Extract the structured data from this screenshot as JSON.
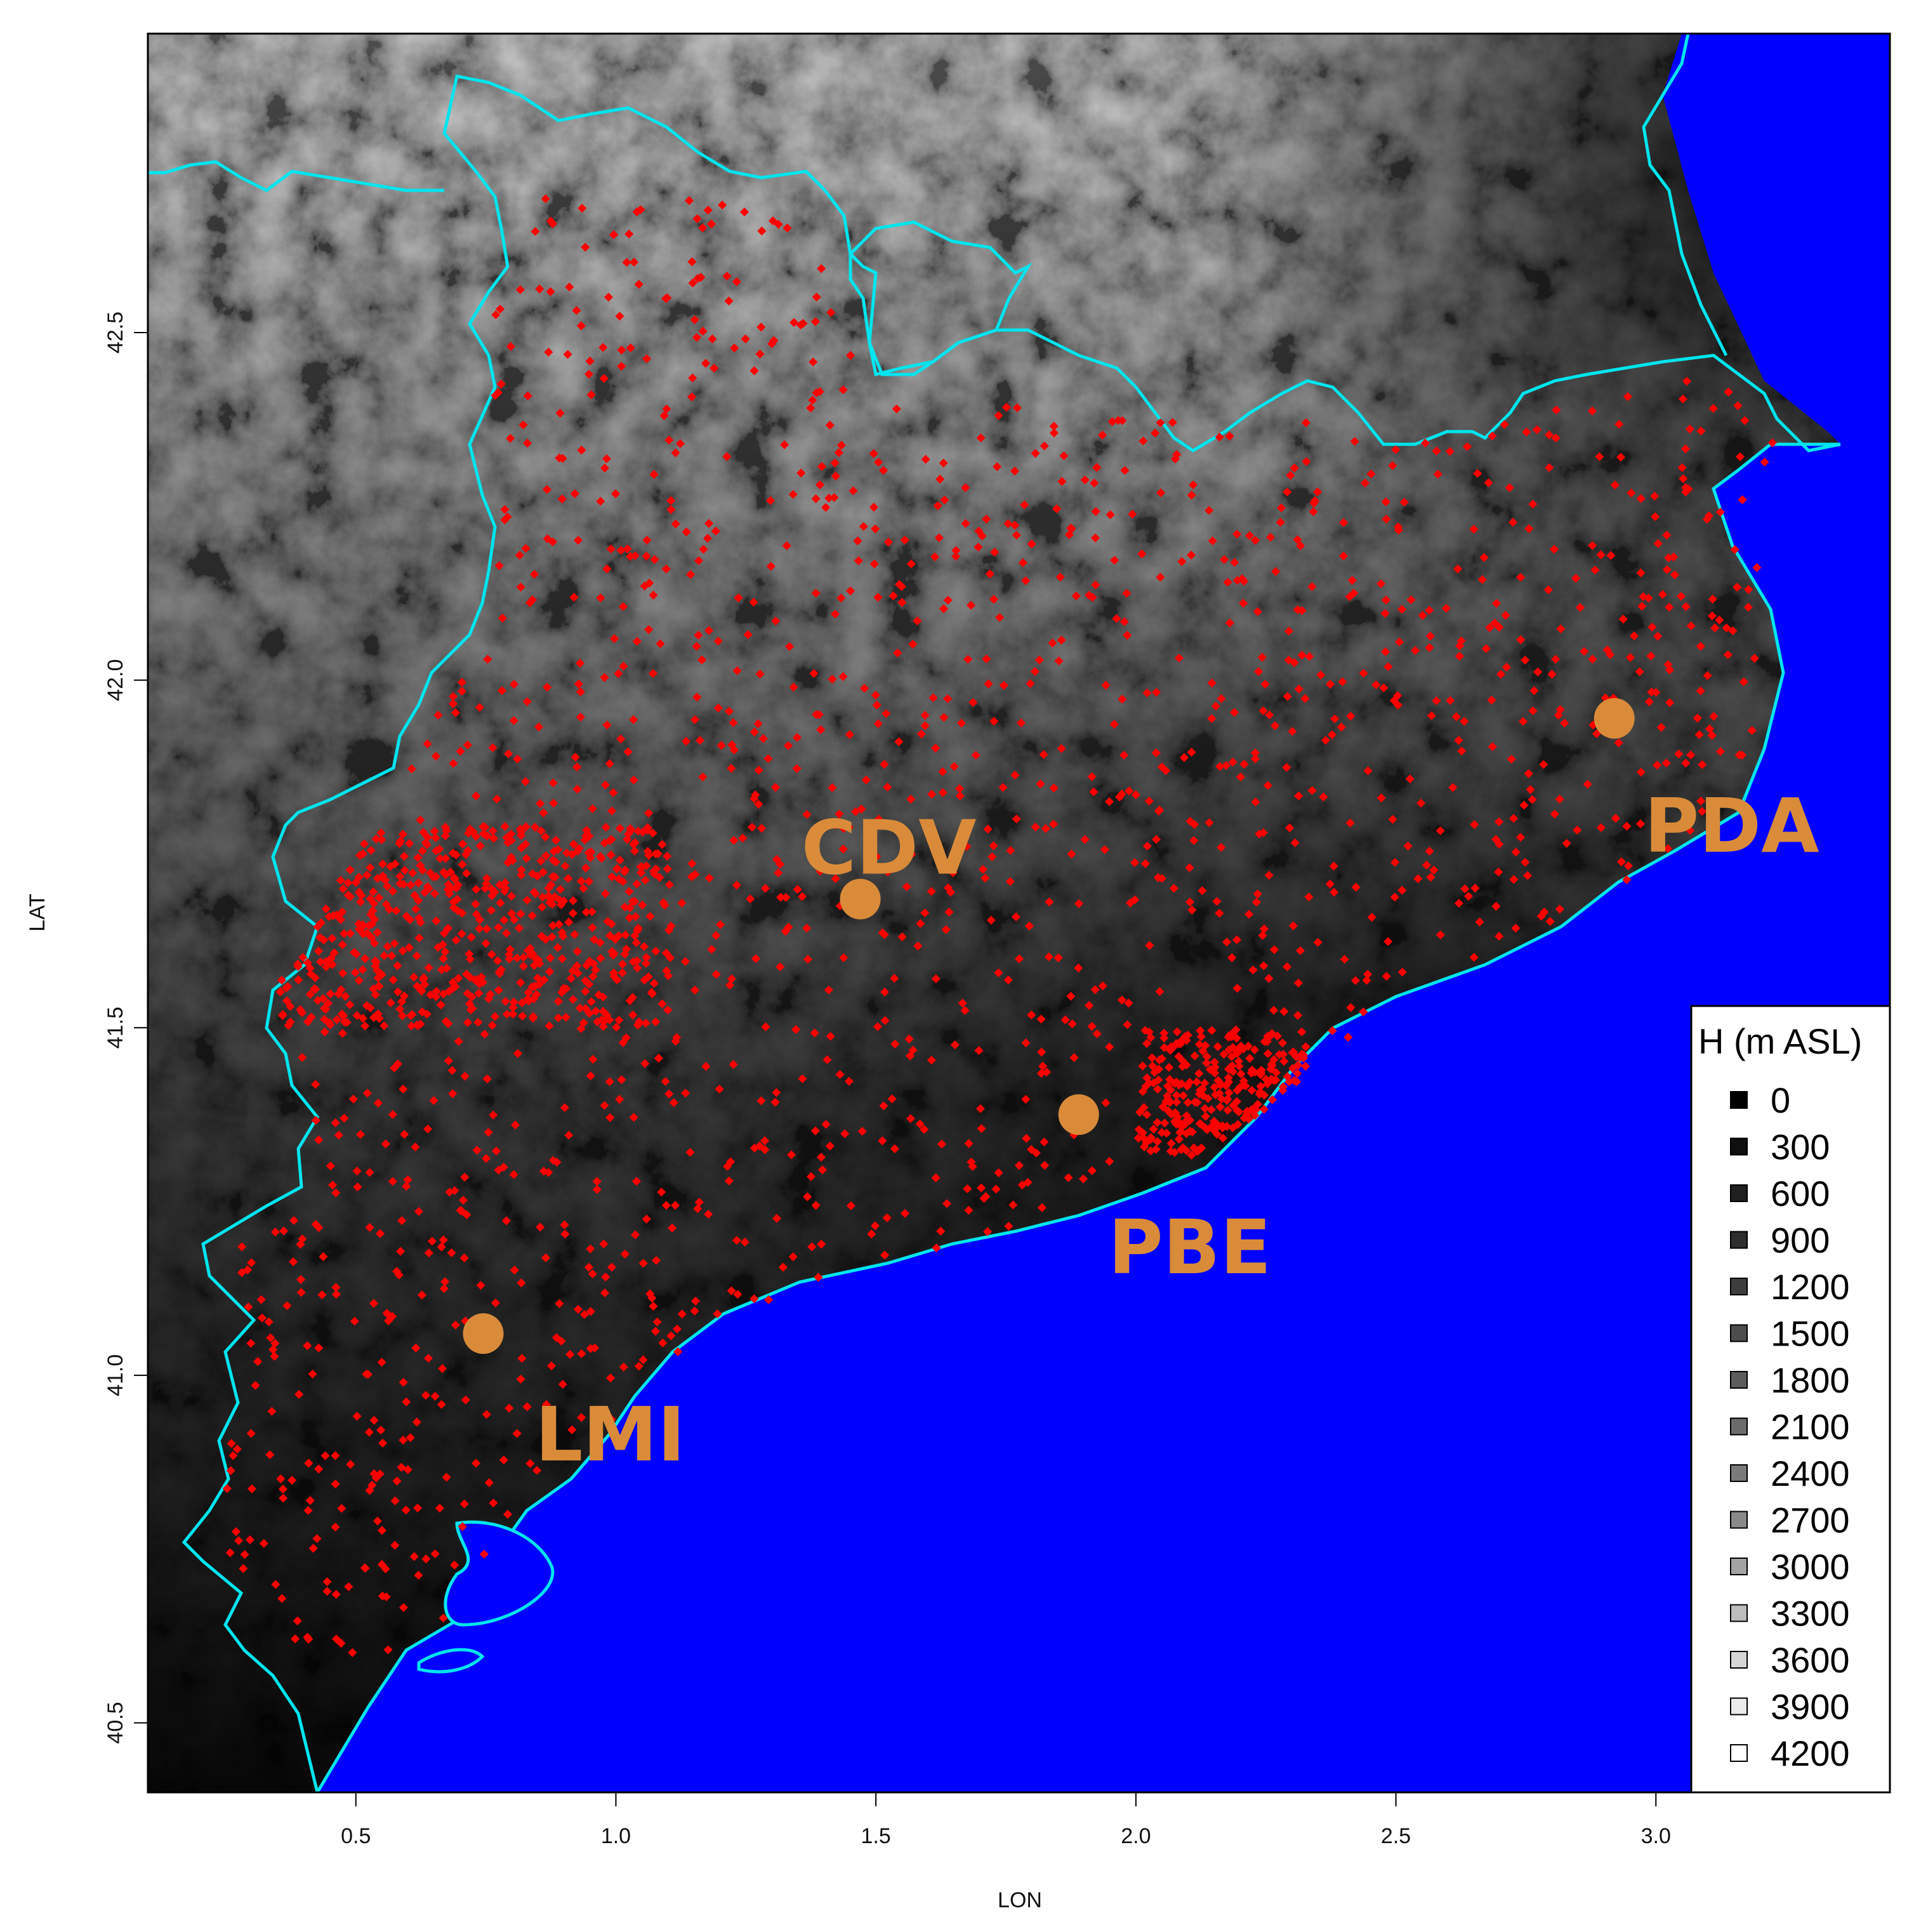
{
  "axes": {
    "xlabel": "LON",
    "ylabel": "LAT",
    "xlim": [
      0.1,
      3.45
    ],
    "ylim": [
      40.4,
      42.93
    ],
    "xticks": [
      {
        "value": 0.5,
        "label": "0.5"
      },
      {
        "value": 1.0,
        "label": "1.0"
      },
      {
        "value": 1.5,
        "label": "1.5"
      },
      {
        "value": 2.0,
        "label": "2.0"
      },
      {
        "value": 2.5,
        "label": "2.5"
      },
      {
        "value": 3.0,
        "label": "3.0"
      }
    ],
    "yticks": [
      {
        "value": 40.5,
        "label": "40.5"
      },
      {
        "value": 41.0,
        "label": "41.0"
      },
      {
        "value": 41.5,
        "label": "41.5"
      },
      {
        "value": 42.0,
        "label": "42.0"
      },
      {
        "value": 42.5,
        "label": "42.5"
      }
    ]
  },
  "colors": {
    "sea": "#0000ff",
    "border": "#00e5ee",
    "station_points": "#ff0000",
    "highlight": "#d98b3a",
    "terrain_low": "#000000",
    "terrain_high": "#ffffff"
  },
  "stations": [
    {
      "code": "CDV",
      "lon": 1.47,
      "lat": 41.685
    },
    {
      "code": "PDA",
      "lon": 2.92,
      "lat": 41.945
    },
    {
      "code": "PBE",
      "lon": 1.89,
      "lat": 41.375
    },
    {
      "code": "LMI",
      "lon": 0.745,
      "lat": 41.06
    }
  ],
  "legend": {
    "title": "H (m ASL)",
    "position": "bottom-right",
    "items": [
      {
        "label": "0",
        "color": "#000000"
      },
      {
        "label": "300",
        "color": "#0f0f0f"
      },
      {
        "label": "600",
        "color": "#1f1f1f"
      },
      {
        "label": "900",
        "color": "#2e2e2e"
      },
      {
        "label": "1200",
        "color": "#3d3d3d"
      },
      {
        "label": "1500",
        "color": "#4d4d4d"
      },
      {
        "label": "1800",
        "color": "#5c5c5c"
      },
      {
        "label": "2100",
        "color": "#6b6b6b"
      },
      {
        "label": "2400",
        "color": "#7a7a7a"
      },
      {
        "label": "2700",
        "color": "#8a8a8a"
      },
      {
        "label": "3000",
        "color": "#a3a3a3"
      },
      {
        "label": "3300",
        "color": "#bdbdbd"
      },
      {
        "label": "3600",
        "color": "#d6d6d6"
      },
      {
        "label": "3900",
        "color": "#ebebeb"
      },
      {
        "label": "4200",
        "color": "#ffffff"
      }
    ]
  }
}
